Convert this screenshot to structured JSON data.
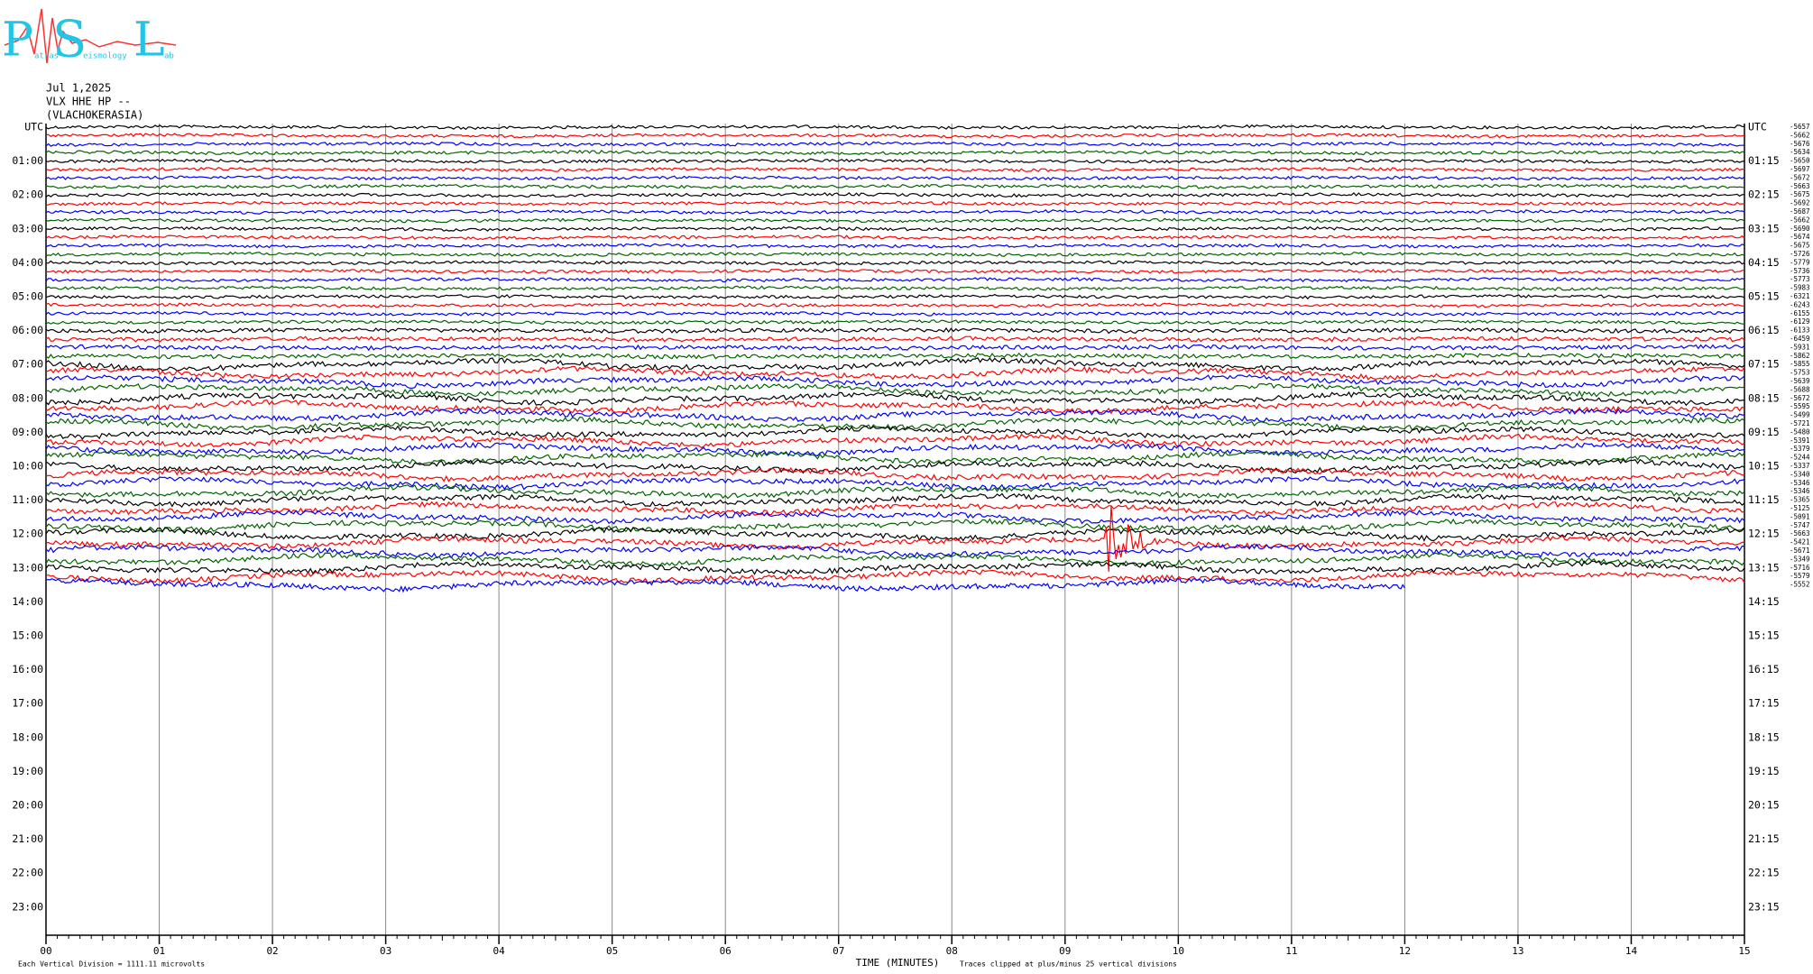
{
  "chart_data": {
    "type": "helicorder",
    "logo": {
      "letters": [
        "P",
        "S",
        "L"
      ],
      "words": [
        "atras",
        "eismology",
        "ab"
      ]
    },
    "date": "Jul 1,2025",
    "station": "VLX HHE HP --",
    "location": "(VLACHOKERASIA)",
    "left_labels": [
      "UTC",
      "01:00",
      "02:00",
      "03:00",
      "04:00",
      "05:00",
      "06:00",
      "07:00",
      "08:00",
      "09:00",
      "10:00",
      "11:00",
      "12:00",
      "13:00",
      "14:00",
      "15:00",
      "16:00",
      "17:00",
      "18:00",
      "19:00",
      "20:00",
      "21:00",
      "22:00",
      "23:00"
    ],
    "right_labels": [
      "UTC",
      "01:15",
      "02:15",
      "03:15",
      "04:15",
      "05:15",
      "06:15",
      "07:15",
      "08:15",
      "09:15",
      "10:15",
      "11:15",
      "12:15",
      "13:15",
      "14:15",
      "15:15",
      "16:15",
      "17:15",
      "18:15",
      "19:15",
      "20:15",
      "21:15",
      "22:15",
      "23:15"
    ],
    "offsets": [
      -5657,
      -5662,
      -5676,
      -5634,
      -5650,
      -5697,
      -5672,
      -5663,
      -5675,
      -5692,
      -5687,
      -5662,
      -5690,
      -5674,
      -5675,
      -5726,
      -5779,
      -5736,
      -5773,
      -5983,
      -6321,
      -6243,
      -6155,
      -6129,
      -6133,
      -6459,
      -5931,
      -5862,
      -5855,
      -5753,
      -5639,
      -5688,
      -5672,
      -5595,
      -5499,
      -5721,
      -5480,
      -5391,
      -5379,
      -5244,
      -5337,
      -5340,
      -5346,
      -5346,
      -5365,
      -5125,
      -5091,
      -5747,
      -5663,
      -5421,
      -5671,
      -5349,
      -5716,
      -5579,
      -5552
    ],
    "trace_colors": [
      "#000000",
      "#ff0000",
      "#0000ff",
      "#006400"
    ],
    "data_end_minute": 12,
    "xlim": [
      0,
      15
    ],
    "xticks": [
      {
        "value": 0,
        "label": "00"
      },
      {
        "value": 1,
        "label": "01"
      },
      {
        "value": 2,
        "label": "02"
      },
      {
        "value": 3,
        "label": "03"
      },
      {
        "value": 4,
        "label": "04"
      },
      {
        "value": 5,
        "label": "05"
      },
      {
        "value": 6,
        "label": "06"
      },
      {
        "value": 7,
        "label": "07"
      },
      {
        "value": 8,
        "label": "08"
      },
      {
        "value": 9,
        "label": "09"
      },
      10,
      11,
      12,
      13,
      14,
      15
    ],
    "xlabel": "TIME (MINUTES)",
    "scale_note": "Each Vertical Division = 1111.11 microvolts",
    "clip_note": "Traces clipped at plus/minus 25 vertical divisions",
    "grid": true
  }
}
